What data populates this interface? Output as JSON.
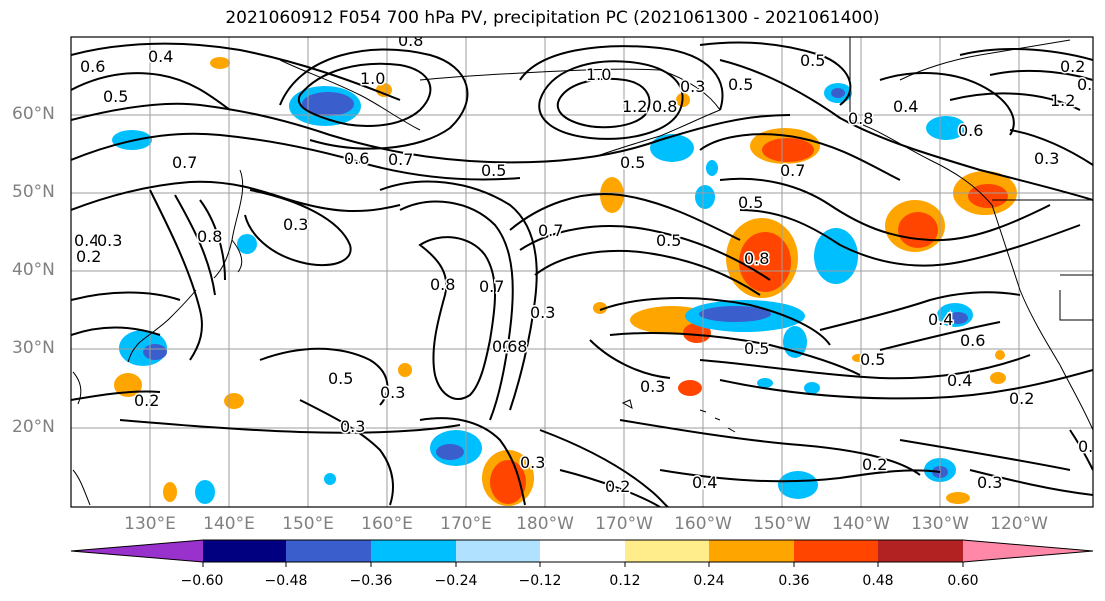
{
  "title": "2021060912 F054 700 hPa PV, precipitation PC (2021061300 - 2021061400)",
  "lat_labels": [
    "60°N",
    "50°N",
    "40°N",
    "30°N",
    "20°N"
  ],
  "lon_labels": [
    "130°E",
    "140°E",
    "150°E",
    "160°E",
    "170°E",
    "180°W",
    "170°W",
    "160°W",
    "150°W",
    "140°W",
    "130°W",
    "120°W"
  ],
  "contour_labels": [
    "0.8",
    "0.6",
    "0.5",
    "0.4",
    "1.0",
    "1.0",
    "1.2",
    "0.8",
    "0.3",
    "0.5",
    "0.5",
    "0.8",
    "0.4",
    "1.2",
    "0.7",
    "0.6",
    "0.7",
    "0.6",
    "0.5",
    "0.5",
    "0.7",
    "0.3",
    "0.8",
    "0.4",
    "0.3",
    "0.7",
    "0.5",
    "0.8",
    "0.8",
    "0.7",
    "0.8",
    "0.3",
    "0.5",
    "0.4",
    "0.6",
    "0.4",
    "0.5",
    "0.3",
    "0.5",
    "0.2",
    "0.2",
    "0.3",
    "0.3",
    "0.2",
    "0.4",
    "0.2",
    "0.3",
    "0.2",
    "0.3",
    "0.2",
    "0.3",
    "0.2",
    "0.3",
    "0.6",
    "0.5"
  ],
  "colorbar": {
    "ticks": [
      "−0.60",
      "−0.48",
      "−0.36",
      "−0.24",
      "−0.12",
      "0.12",
      "0.24",
      "0.36",
      "0.48",
      "0.60"
    ],
    "colors": [
      "#9932cc",
      "#000080",
      "#3a5fcd",
      "#00bfff",
      "#b0e2ff",
      "#ffffff",
      "#ffec8b",
      "#ffa500",
      "#ff4500",
      "#b22222",
      "#ff88a8"
    ]
  }
}
